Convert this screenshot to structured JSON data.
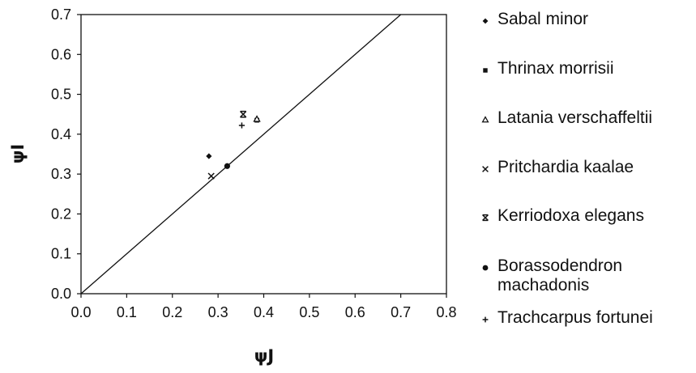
{
  "chart_data": {
    "type": "scatter",
    "xlabel": "ψJ",
    "ylabel": "ψI",
    "xlim": [
      0.0,
      0.8
    ],
    "ylim": [
      0.0,
      0.7
    ],
    "x_ticks": [
      "0.0",
      "0.1",
      "0.2",
      "0.3",
      "0.4",
      "0.5",
      "0.6",
      "0.7",
      "0.8"
    ],
    "y_ticks": [
      "0.0",
      "0.1",
      "0.2",
      "0.3",
      "0.4",
      "0.5",
      "0.6",
      "0.7"
    ],
    "reference_line": {
      "x": [
        0.0,
        0.7
      ],
      "y": [
        0.0,
        0.7
      ]
    },
    "grid": false,
    "legend_position": "right",
    "series": [
      {
        "name": "Sabal minor",
        "marker": "diamond",
        "x": [
          0.28
        ],
        "y": [
          0.345
        ]
      },
      {
        "name": "Thrinax morrisii",
        "marker": "square",
        "x": [
          0.385
        ],
        "y": [
          0.435
        ]
      },
      {
        "name": "Latania verschaffeltii",
        "marker": "triangle",
        "x": [
          0.385
        ],
        "y": [
          0.438
        ]
      },
      {
        "name": "Pritchardia kaalae",
        "marker": "x",
        "x": [
          0.285
        ],
        "y": [
          0.295
        ]
      },
      {
        "name": "Kerriodoxa elegans",
        "marker": "asterisk",
        "x": [
          0.355
        ],
        "y": [
          0.45
        ]
      },
      {
        "name": "Borassodendron machadonis",
        "marker": "circle",
        "x": [
          0.32
        ],
        "y": [
          0.32
        ]
      },
      {
        "name": "Trachcarpus fortunei",
        "marker": "plus",
        "x": [
          0.352
        ],
        "y": [
          0.422
        ]
      }
    ]
  }
}
